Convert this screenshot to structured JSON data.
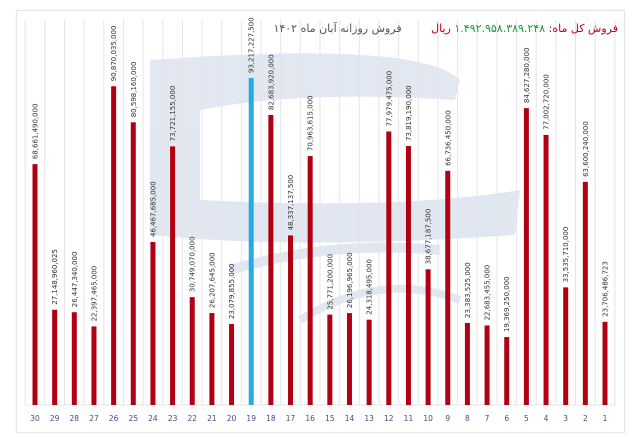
{
  "header": {
    "title": "فروش روزانه آبان ماه ۱۴۰۲",
    "total_label": "فروش کل ماه:",
    "total_value": "۱.۴۹۲.۹۵۸.۳۸۹.۲۴۸",
    "total_unit": "ریال"
  },
  "chart_data": {
    "type": "bar",
    "title": "فروش روزانه آبان ماه ۱۴۰۲",
    "categories": [
      "30",
      "29",
      "28",
      "27",
      "26",
      "25",
      "24",
      "23",
      "22",
      "21",
      "20",
      "19",
      "18",
      "17",
      "16",
      "15",
      "14",
      "13",
      "12",
      "11",
      "10",
      "9",
      "8",
      "7",
      "6",
      "5",
      "4",
      "3",
      "2",
      "1"
    ],
    "values": [
      68661490000,
      27148960025,
      26447340000,
      22397465000,
      90870035000,
      80598160000,
      46467685000,
      73721155000,
      30749070000,
      26207645000,
      23079855000,
      93217227500,
      82683920000,
      48337137500,
      70963615000,
      25771200000,
      26196965000,
      24318495000,
      77979475000,
      73819190000,
      38677187500,
      66736450000,
      23383525000,
      22683455000,
      19369250000,
      84627280000,
      77002720000,
      33535710000,
      63600240000,
      23706486723
    ],
    "labels": [
      "68,661,490,000",
      "27,148,960,025",
      "26,447,340,000",
      "22,397,465,000",
      "90,870,035,000",
      "80,598,160,000",
      "46,467,685,000",
      "73,721,155,000",
      "30,749,070,000",
      "26,207,645,000",
      "23,079,855,000",
      "93,217,227,500",
      "82,683,920,000",
      "48,337,137,500",
      "70,963,615,000",
      "25,771,200,000",
      "26,196,965,000",
      "24,318,495,000",
      "77,979,475,000",
      "73,819,190,000",
      "38,677,187,500",
      "66,736,450,000",
      "23,383,525,000",
      "22,683,455,000",
      "19,369,250,000",
      "84,627,280,000",
      "77,002,720,000",
      "33,535,710,000",
      "63,600,240,000",
      "23,706,486,723"
    ],
    "xlabel": "",
    "ylabel": "",
    "ylim": [
      0,
      93217227500
    ],
    "x_order": "reversed (day 30 on left)",
    "grid": "vertical lines",
    "highlight_category": "19",
    "colors": {
      "bar": "#b00012",
      "highlight": "#29abe2",
      "label": "#333333",
      "tick": "#5a3f7a",
      "total_value": "#1a9a3a",
      "total_label": "#c0001a"
    }
  }
}
